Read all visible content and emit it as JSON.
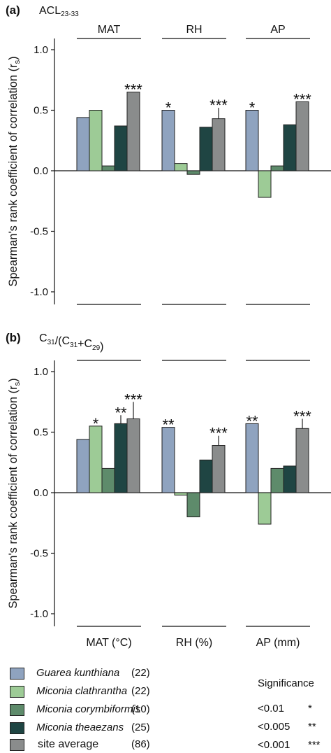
{
  "chart_data": [
    {
      "type": "bar",
      "panel_label": "(a)",
      "title": "ACL",
      "title_sub": "23-33",
      "ylabel": "Spearman's rank coefficient of correlation (r",
      "ylabel_sub": "s",
      "ylabel_close": ")",
      "ylim": [
        -1.1,
        1.1
      ],
      "yticks": [
        "1.0",
        "0.5",
        "0.0",
        "-0.5",
        "-1.0"
      ],
      "ytick_values": [
        1.0,
        0.5,
        0.0,
        -0.5,
        -1.0
      ],
      "group_labels_top": [
        "MAT",
        "RH",
        "AP"
      ],
      "group_labels_bottom": [
        "",
        "",
        ""
      ],
      "groups": [
        {
          "values": [
            0.44,
            0.5,
            0.04,
            0.37,
            0.65
          ],
          "stars": [
            "",
            "",
            "",
            "",
            "***"
          ],
          "errors": [
            null,
            null,
            null,
            null,
            null
          ]
        },
        {
          "values": [
            0.5,
            0.06,
            -0.03,
            0.36,
            0.43
          ],
          "stars": [
            "*",
            "",
            "",
            "",
            "***"
          ],
          "errors": [
            null,
            null,
            null,
            null,
            0.09
          ]
        },
        {
          "values": [
            0.5,
            -0.22,
            0.04,
            0.38,
            0.57
          ],
          "stars": [
            "*",
            "",
            "",
            "",
            "***"
          ],
          "errors": [
            null,
            null,
            null,
            null,
            null
          ]
        }
      ]
    },
    {
      "type": "bar",
      "panel_label": "(b)",
      "title": "C31/(C31+C29)",
      "ylabel": "Spearman's rank coefficient of correlation (r",
      "ylabel_sub": "s",
      "ylabel_close": ")",
      "ylim": [
        -1.1,
        1.1
      ],
      "yticks": [
        "1.0",
        "0.5",
        "0.0",
        "-0.5",
        "-1.0"
      ],
      "ytick_values": [
        1.0,
        0.5,
        0.0,
        -0.5,
        -1.0
      ],
      "group_labels_top": [
        "",
        "",
        ""
      ],
      "group_labels_bottom": [
        "MAT (°C)",
        "RH (%)",
        "AP (mm)"
      ],
      "groups": [
        {
          "values": [
            0.44,
            0.55,
            0.2,
            0.57,
            0.61
          ],
          "stars": [
            "",
            "*",
            "",
            "**",
            "***"
          ],
          "errors": [
            null,
            null,
            null,
            0.07,
            0.14
          ]
        },
        {
          "values": [
            0.54,
            -0.02,
            -0.2,
            0.27,
            0.39
          ],
          "stars": [
            "**",
            "",
            "",
            "",
            "***"
          ],
          "errors": [
            null,
            null,
            null,
            null,
            0.08
          ]
        },
        {
          "values": [
            0.57,
            -0.26,
            0.2,
            0.22,
            0.53
          ],
          "stars": [
            "**",
            "",
            "",
            "",
            "***"
          ],
          "errors": [
            null,
            null,
            null,
            null,
            0.08
          ]
        }
      ]
    }
  ],
  "panel_b_title_parts": {
    "c1": "C",
    "s1": "31",
    "mid": "/(C",
    "s2": "31",
    "plus": "+C",
    "s3": "29",
    "end": ")"
  },
  "series": [
    {
      "name": "Guarea kunthiana",
      "n": "(22)",
      "color": "#8fa3bf",
      "italic": true
    },
    {
      "name": "Miconia clathrantha",
      "n": "(22)",
      "color": "#9dcb96",
      "italic": true
    },
    {
      "name": "Miconia corymbiformis",
      "n": "(10)",
      "color": "#5e8b6b",
      "italic": true
    },
    {
      "name": "Miconia theaezans",
      "n": "(25)",
      "color": "#1f4543",
      "italic": true
    },
    {
      "name": "site average",
      "n": "(86)",
      "color": "#8a8c8c",
      "italic": false
    }
  ],
  "significance": {
    "title": "Significance",
    "rows": [
      {
        "p": "<0.01",
        "stars": "*"
      },
      {
        "p": "<0.005",
        "stars": "**"
      },
      {
        "p": "<0.001",
        "stars": "***"
      }
    ]
  }
}
